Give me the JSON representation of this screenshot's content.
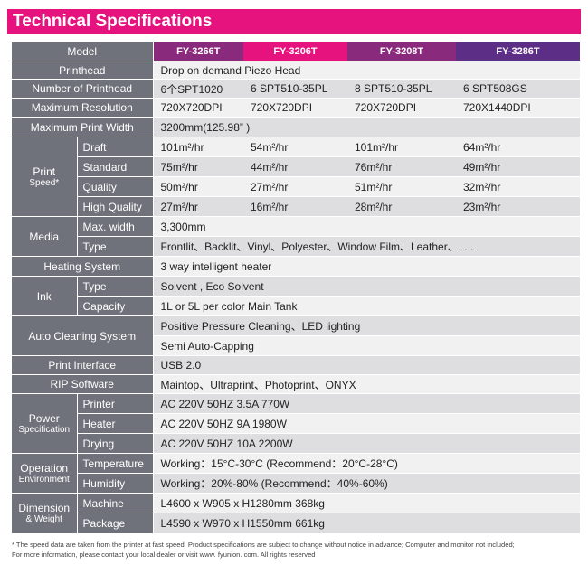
{
  "title": "Technical Specifications",
  "header": {
    "label": "Model",
    "models": [
      "FY-3266T",
      "FY-3206T",
      "FY-3208T",
      "FY-3286T"
    ]
  },
  "printhead": {
    "label": "Printhead",
    "value": "Drop on demand  Piezo Head"
  },
  "num_printhead": {
    "label": "Number of Printhead",
    "values": [
      "6个SPT1020",
      "6  SPT510-35PL",
      "8  SPT510-35PL",
      "6  SPT508GS"
    ]
  },
  "max_resolution": {
    "label": "Maximum Resolution",
    "values": [
      "720X720DPI",
      "720X720DPI",
      "720X720DPI",
      "720X1440DPI"
    ]
  },
  "max_print_width": {
    "label": "Maximum Print Width",
    "value": "3200mm(125.98” )"
  },
  "print_speed": {
    "label_line1": "Print",
    "label_line2": "Speed*",
    "rows": [
      {
        "label": "Draft",
        "values": [
          "101m²/hr",
          "54m²/hr",
          "101m²/hr",
          "64m²/hr"
        ]
      },
      {
        "label": "Standard",
        "values": [
          "75m²/hr",
          "44m²/hr",
          "76m²/hr",
          "49m²/hr"
        ]
      },
      {
        "label": "Quality",
        "values": [
          "50m²/hr",
          "27m²/hr",
          "51m²/hr",
          "32m²/hr"
        ]
      },
      {
        "label": "High Quality",
        "values": [
          "27m²/hr",
          "16m²/hr",
          "28m²/hr",
          "23m²/hr"
        ]
      }
    ]
  },
  "media": {
    "label": "Media",
    "rows": [
      {
        "label": "Max.  width",
        "value": "3,300mm"
      },
      {
        "label": "Type",
        "value": "Frontlit、Backlit、Vinyl、Polyester、Window  Film、Leather、. . ."
      }
    ]
  },
  "heating": {
    "label": "Heating System",
    "value": "3  way  intelligent  heater"
  },
  "ink": {
    "label": "Ink",
    "rows": [
      {
        "label": "Type",
        "value": "Solvent , Eco Solvent"
      },
      {
        "label": "Capacity",
        "value": "1L  or  5L  per color  Main  Tank"
      }
    ]
  },
  "auto_cleaning": {
    "label": "Auto Cleaning System",
    "values": [
      "Positive  Pressure  Cleaning、LED  lighting",
      "Semi  Auto-Capping"
    ]
  },
  "print_interface": {
    "label": "Print  Interface",
    "value": "USB 2.0"
  },
  "rip": {
    "label": "RIP Software",
    "value": "Maintop、Ultraprint、Photoprint、ONYX"
  },
  "power": {
    "label_line1": "Power",
    "label_line2": "Specification",
    "rows": [
      {
        "label": "Printer",
        "value": "AC   220V   50HZ    3.5A    770W"
      },
      {
        "label": "Heater",
        "value": "AC   220V   50HZ    9A       1980W"
      },
      {
        "label": "Drying",
        "value": "AC   220V   50HZ    10A     2200W"
      }
    ]
  },
  "operation": {
    "label_line1": "Operation",
    "label_line2": "Environment",
    "rows": [
      {
        "label": "Temperature",
        "value": "Working：15°C-30°C  (Recommend：20°C-28°C)"
      },
      {
        "label": "Humidity",
        "value": "Working：20%-80%  (Recommend：40%-60%)"
      }
    ]
  },
  "dimension": {
    "label_line1": "Dimension",
    "label_line2": "& Weight",
    "rows": [
      {
        "label": "Machine",
        "value": "L4600 x W905 x H1280mm    368kg"
      },
      {
        "label": "Package",
        "value": "L4590 x W970 x H1550mm    661kg"
      }
    ]
  },
  "footnote": {
    "line1": "*  The speed data are taken from the printer at fast speed. Product specifications are subject to change without notice in advance; Computer  and monitor not included;",
    "line2": "For  more information, please contact  your local dealer  or visit  www. fyunion. com.  All  rights  reserved"
  }
}
